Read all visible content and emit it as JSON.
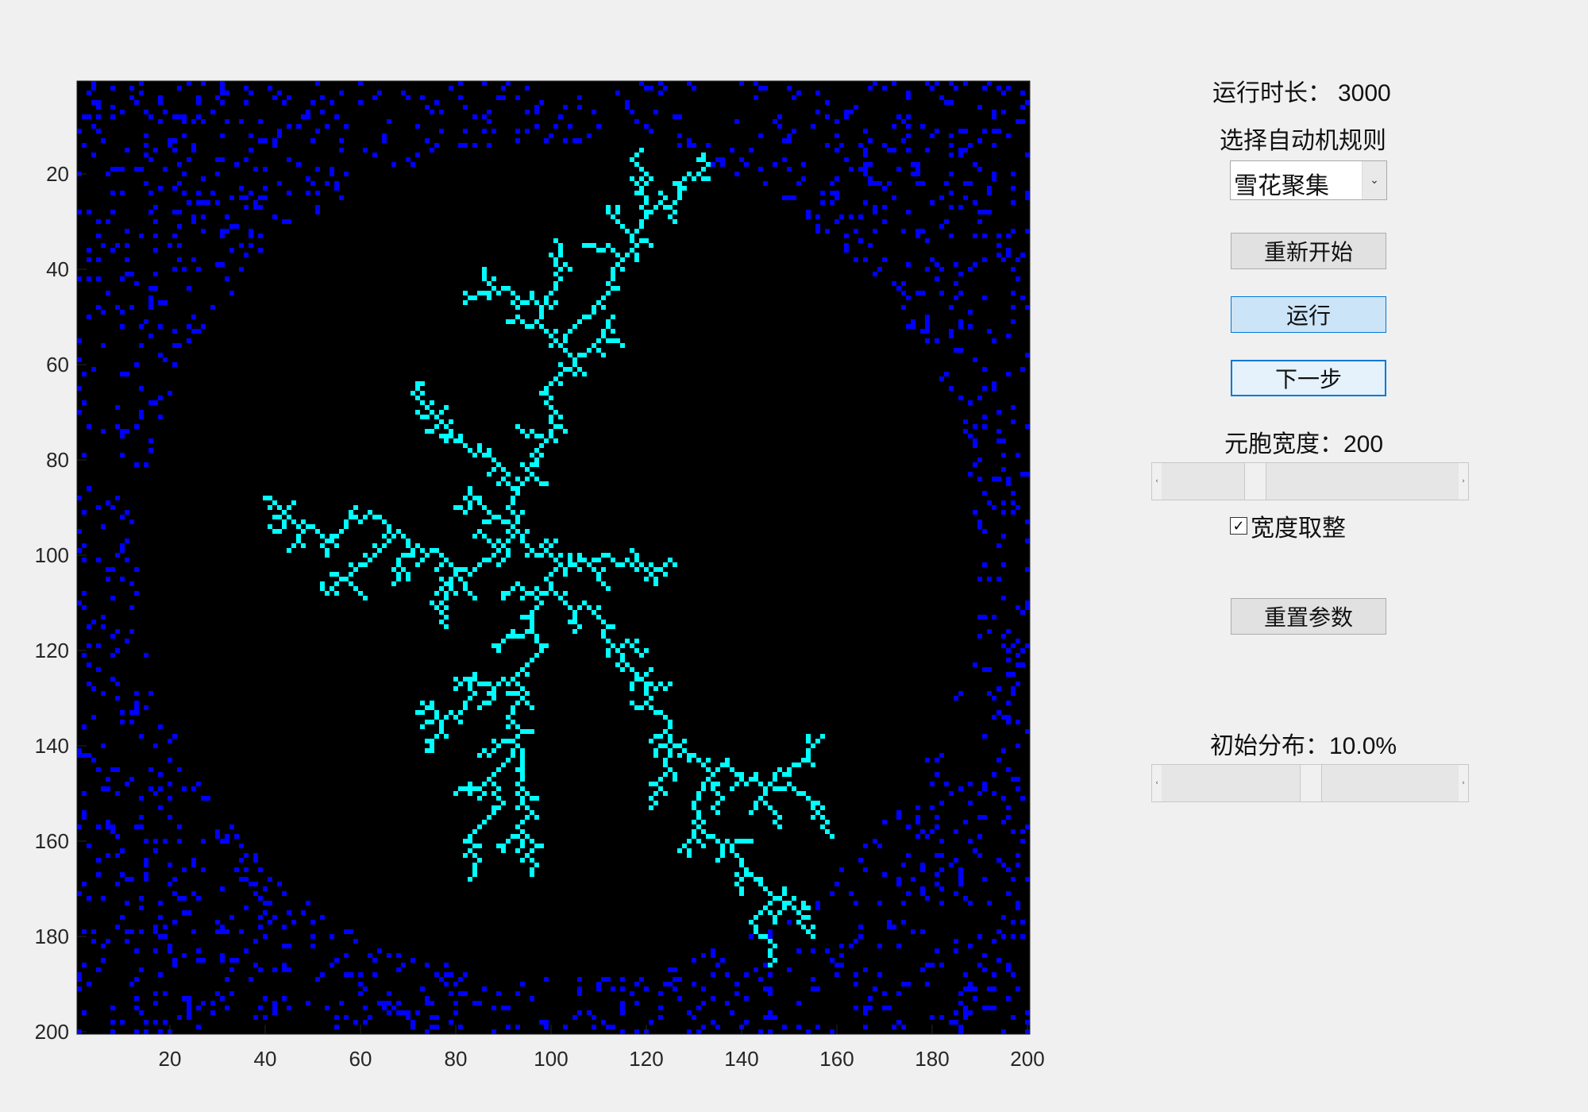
{
  "plot": {
    "x_ticks": [
      "20",
      "40",
      "60",
      "80",
      "100",
      "120",
      "140",
      "160",
      "180",
      "200"
    ],
    "y_ticks": [
      "20",
      "40",
      "60",
      "80",
      "100",
      "120",
      "140",
      "160",
      "180",
      "200"
    ],
    "grid_size": 200,
    "colors": {
      "background": "#000000",
      "crystal": "#00ffff",
      "particle": "#0000ff"
    }
  },
  "controls": {
    "runtime_label": "运行时长：",
    "runtime_value": "3000",
    "rule_label": "选择自动机规则",
    "rule_selected": "雪花聚集",
    "restart_button": "重新开始",
    "run_button": "运行",
    "step_button": "下一步",
    "cell_width_label": "元胞宽度：",
    "cell_width_value": "200",
    "cell_width_fraction": 0.3,
    "round_width_checked": true,
    "round_width_label": "宽度取整",
    "reset_params_button": "重置参数",
    "init_dist_label": "初始分布：",
    "init_dist_value": "10.0%",
    "init_dist_fraction": 0.5
  }
}
